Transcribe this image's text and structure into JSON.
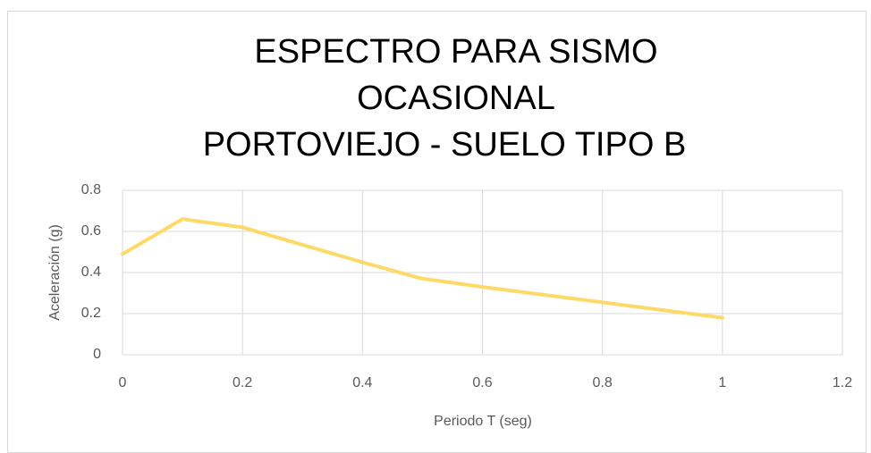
{
  "chart_data": {
    "type": "line",
    "title": [
      "ESPECTRO PARA SISMO",
      "OCASIONAL",
      "PORTOVIEJO - SUELO TIPO B"
    ],
    "xlabel": "Periodo T (seg)",
    "ylabel": "Aceleración (g)",
    "x": [
      0,
      0.1,
      0.2,
      0.4,
      0.5,
      0.6,
      0.8,
      1
    ],
    "series": [
      {
        "color": "#ffd966",
        "values": [
          0.49,
          0.66,
          0.62,
          0.45,
          0.37,
          0.33,
          0.255,
          0.18
        ]
      }
    ],
    "xlim": [
      0,
      1.2
    ],
    "xticks": [
      0,
      0.2,
      0.4,
      0.6,
      0.8,
      1,
      1.2
    ],
    "ylim": [
      0,
      0.8
    ],
    "yticks": [
      0,
      0.2,
      0.4,
      0.6,
      0.8
    ],
    "grid": true
  }
}
